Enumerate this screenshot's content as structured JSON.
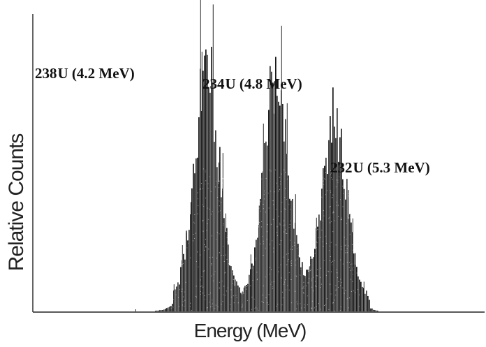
{
  "chart_data": {
    "type": "bar",
    "title": "",
    "xlabel": "Energy (MeV)",
    "ylabel": "Relative Counts",
    "grid": false,
    "legend": "none",
    "axes": {
      "x_ticks_shown": false,
      "y_ticks_shown": false
    },
    "series": [
      {
        "peaks": [
          {
            "isotope_mass": "238",
            "element": "U",
            "energy_label": "(4.2 MeV)",
            "energy_mev": 4.2,
            "relative_height": 0.78
          },
          {
            "isotope_mass": "234",
            "element": "U",
            "energy_label": "(4.8 MeV)",
            "energy_mev": 4.8,
            "relative_height": 0.72
          },
          {
            "isotope_mass": "232",
            "element": "U",
            "energy_label": "(5.3 MeV)",
            "energy_mev": 5.3,
            "relative_height": 0.61
          }
        ]
      }
    ]
  }
}
